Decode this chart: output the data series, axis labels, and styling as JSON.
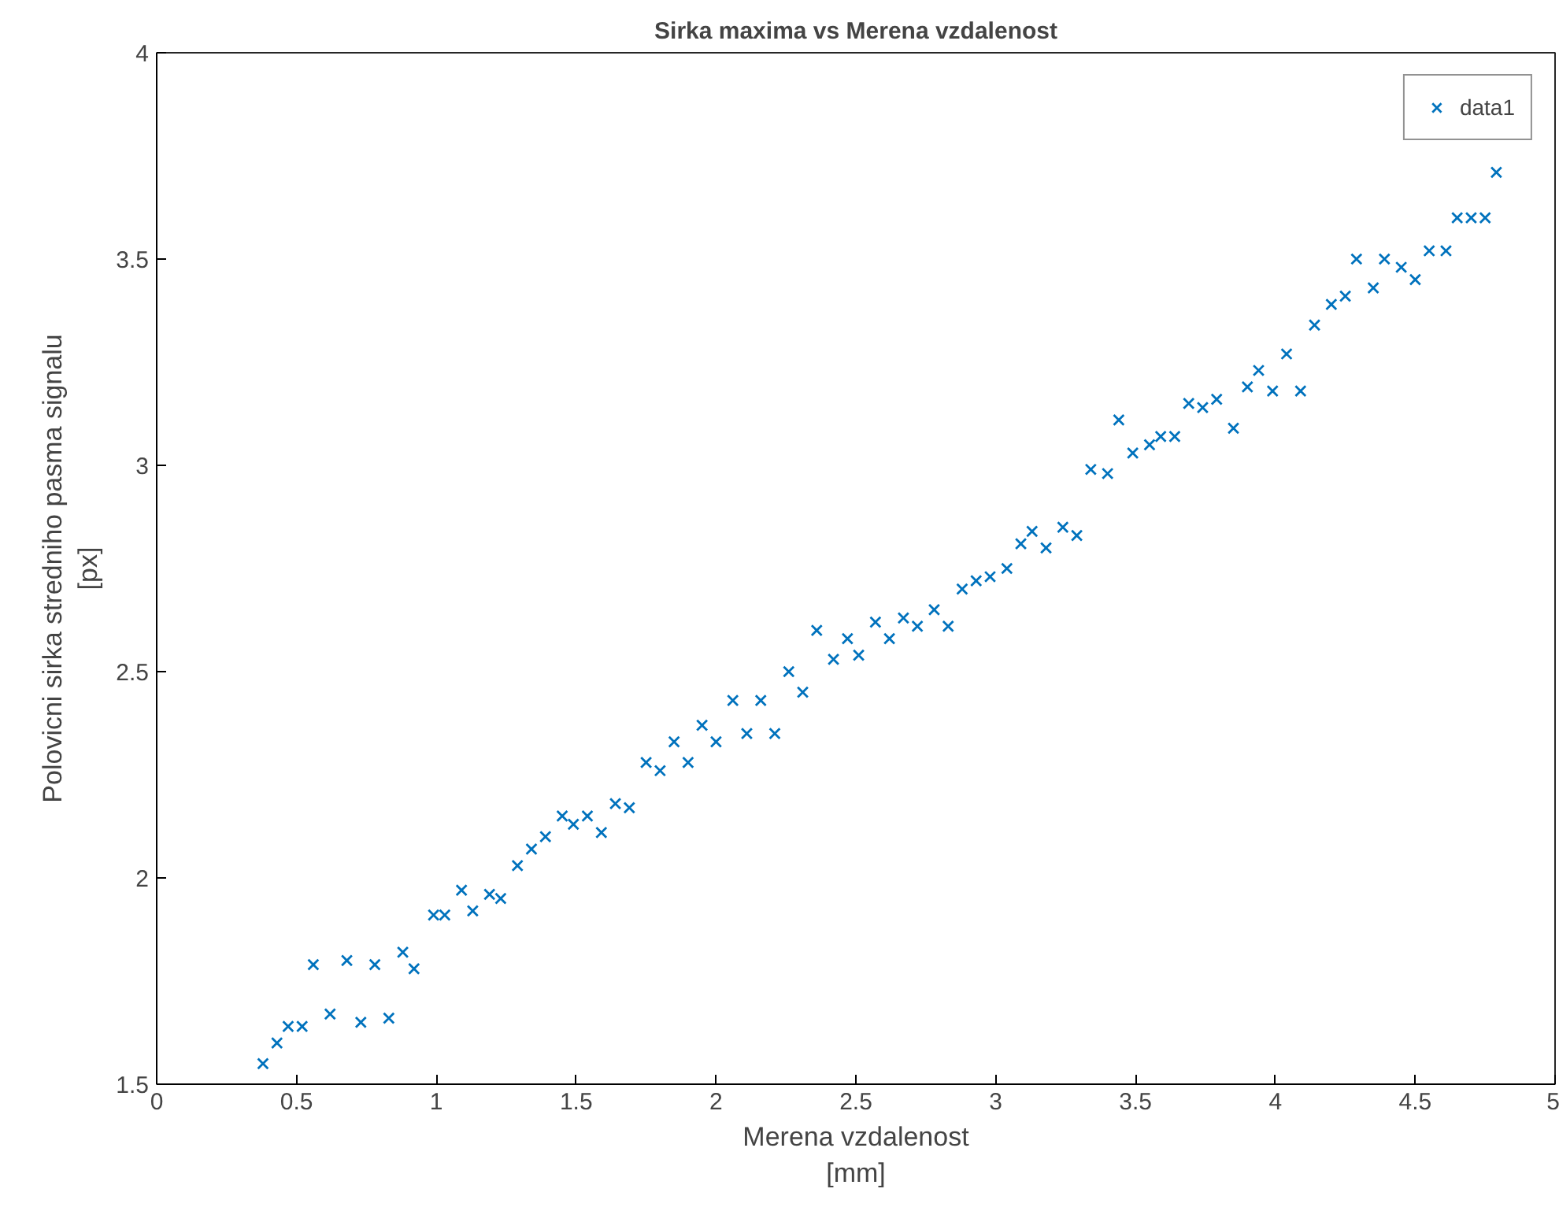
{
  "chart_data": {
    "type": "scatter",
    "title": "Sirka maxima vs Merena vzdalenost",
    "xlabel": "Merena vzdalenost\n[mm]",
    "ylabel": "Polovicni sirka stredniho pasma signalu\n[px]",
    "xlim": [
      0,
      5
    ],
    "xticks": [
      0,
      0.5,
      1,
      1.5,
      2,
      2.5,
      3,
      3.5,
      4,
      4.5,
      5
    ],
    "ylim": [
      1.5,
      4
    ],
    "yticks": [
      1.5,
      2,
      2.5,
      3,
      3.5,
      4
    ],
    "grid": false,
    "legend": "top right",
    "marker": "cross",
    "series": [
      {
        "name": "data1",
        "color": "#0072bd",
        "x": [
          0.38,
          0.43,
          0.47,
          0.52,
          0.56,
          0.62,
          0.68,
          0.73,
          0.78,
          0.83,
          0.88,
          0.92,
          0.99,
          1.03,
          1.09,
          1.13,
          1.19,
          1.23,
          1.29,
          1.34,
          1.39,
          1.45,
          1.49,
          1.54,
          1.59,
          1.64,
          1.69,
          1.75,
          1.8,
          1.85,
          1.9,
          1.95,
          2.0,
          2.06,
          2.11,
          2.16,
          2.21,
          2.26,
          2.31,
          2.36,
          2.42,
          2.47,
          2.51,
          2.57,
          2.62,
          2.67,
          2.72,
          2.78,
          2.83,
          2.88,
          2.93,
          2.98,
          3.04,
          3.09,
          3.13,
          3.18,
          3.24,
          3.29,
          3.34,
          3.4,
          3.44,
          3.49,
          3.55,
          3.59,
          3.64,
          3.69,
          3.74,
          3.79,
          3.85,
          3.9,
          3.94,
          3.99,
          4.04,
          4.09,
          4.14,
          4.2,
          4.25,
          4.29,
          4.35,
          4.39,
          4.45,
          4.5,
          4.55,
          4.61,
          4.65,
          4.7,
          4.75,
          4.79
        ],
        "values": [
          1.55,
          1.6,
          1.64,
          1.64,
          1.79,
          1.67,
          1.8,
          1.65,
          1.79,
          1.66,
          1.82,
          1.78,
          1.91,
          1.91,
          1.97,
          1.92,
          1.96,
          1.95,
          2.03,
          2.07,
          2.1,
          2.15,
          2.13,
          2.15,
          2.11,
          2.18,
          2.17,
          2.28,
          2.26,
          2.33,
          2.28,
          2.37,
          2.33,
          2.43,
          2.35,
          2.43,
          2.35,
          2.5,
          2.45,
          2.6,
          2.53,
          2.58,
          2.54,
          2.62,
          2.58,
          2.63,
          2.61,
          2.65,
          2.61,
          2.7,
          2.72,
          2.73,
          2.75,
          2.81,
          2.84,
          2.8,
          2.85,
          2.83,
          2.99,
          2.98,
          3.11,
          3.03,
          3.05,
          3.07,
          3.07,
          3.15,
          3.14,
          3.16,
          3.09,
          3.19,
          3.23,
          3.18,
          3.27,
          3.18,
          3.34,
          3.39,
          3.41,
          3.5,
          3.43,
          3.5,
          3.48,
          3.45,
          3.52,
          3.52,
          3.6,
          3.6,
          3.6,
          3.71
        ]
      }
    ]
  }
}
